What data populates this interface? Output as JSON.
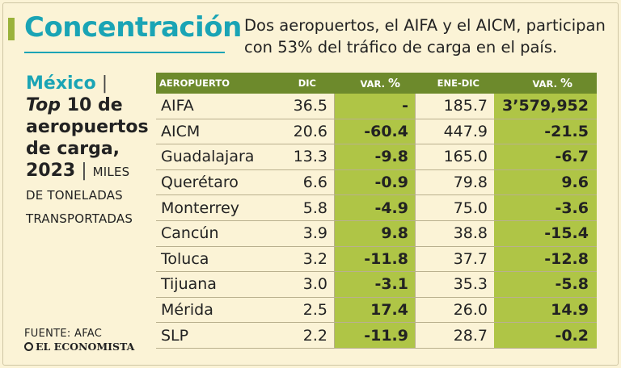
{
  "headline": "Concentración",
  "subtitle": "Dos aeropuertos, el AIFA y el AICM, participan con 53% del tráfico de carga en el país.",
  "side": {
    "country": "México",
    "separator": "|",
    "top_word": "Top",
    "top_rest": " 10 de aeropuertos de carga, 2023",
    "units": "MILES DE TONELADAS TRANSPORTADAS"
  },
  "source": "FUENTE: AFAC",
  "brand": "EL ECONOMISTA",
  "colors": {
    "accent_teal": "#1aa4b5",
    "header_green": "#6d8a2c",
    "cell_green": "#afc546",
    "background": "#fbf3d6"
  },
  "chart_data": {
    "type": "table",
    "title": "México | Top 10 de aeropuertos de carga, 2023 | MILES DE TONELADAS TRANSPORTADAS",
    "columns": {
      "airport": "AEROPUERTO",
      "dic": "DIC",
      "var1": "VAR.",
      "enedic": "ENE-DIC",
      "var2": "VAR.",
      "pct": "%"
    },
    "rows": [
      {
        "airport": "AIFA",
        "dic": "36.5",
        "var1": "-",
        "enedic": "185.7",
        "var2": "3’579,952"
      },
      {
        "airport": "AICM",
        "dic": "20.6",
        "var1": "-60.4",
        "enedic": "447.9",
        "var2": "-21.5"
      },
      {
        "airport": "Guadalajara",
        "dic": "13.3",
        "var1": "-9.8",
        "enedic": "165.0",
        "var2": "-6.7"
      },
      {
        "airport": "Querétaro",
        "dic": "6.6",
        "var1": "-0.9",
        "enedic": "79.8",
        "var2": "9.6"
      },
      {
        "airport": "Monterrey",
        "dic": "5.8",
        "var1": "-4.9",
        "enedic": "75.0",
        "var2": "-3.6"
      },
      {
        "airport": "Cancún",
        "dic": "3.9",
        "var1": "9.8",
        "enedic": "38.8",
        "var2": "-15.4"
      },
      {
        "airport": "Toluca",
        "dic": "3.2",
        "var1": "-11.8",
        "enedic": "37.7",
        "var2": "-12.8"
      },
      {
        "airport": "Tijuana",
        "dic": "3.0",
        "var1": "-3.1",
        "enedic": "35.3",
        "var2": "-5.8"
      },
      {
        "airport": "Mérida",
        "dic": "2.5",
        "var1": "17.4",
        "enedic": "26.0",
        "var2": "14.9"
      },
      {
        "airport": "SLP",
        "dic": "2.2",
        "var1": "-11.9",
        "enedic": "28.7",
        "var2": "-0.2"
      }
    ]
  }
}
